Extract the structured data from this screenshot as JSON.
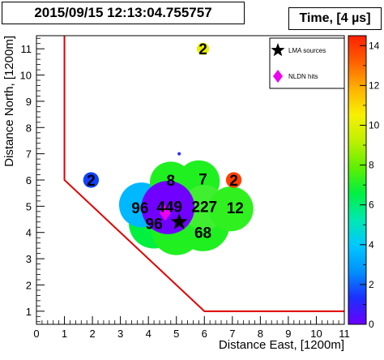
{
  "title": "2015/09/15 12:13:04.755757",
  "chart_data": {
    "type": "scatter",
    "xlabel": "Distance East,  [1200m]",
    "ylabel": "Distance North,  [1200m]",
    "xlim": [
      0,
      11
    ],
    "ylim": [
      0.5,
      11.5
    ],
    "xticks": [
      0,
      1,
      2,
      3,
      4,
      5,
      6,
      7,
      8,
      9,
      10,
      11
    ],
    "yticks": [
      1,
      2,
      3,
      4,
      5,
      6,
      7,
      8,
      9,
      10,
      11
    ],
    "colorbar": {
      "title": "Time, [4  µs]",
      "range": [
        0,
        14.5
      ],
      "ticks": [
        0,
        2,
        4,
        6,
        8,
        10,
        12,
        14
      ],
      "stops": [
        "#6a00ff",
        "#1c2fff",
        "#0090ff",
        "#00c8ff",
        "#00e8b0",
        "#00f040",
        "#60f000",
        "#c0f000",
        "#f8f000",
        "#ffb000",
        "#ff6000",
        "#ff2000"
      ]
    },
    "legend": {
      "placement": "top-right",
      "entries": [
        {
          "label": "LMA sources",
          "symbol": "star",
          "color": "#000000"
        },
        {
          "label": "NLDN hits",
          "symbol": "diamond",
          "color": "#ee00ee"
        }
      ]
    },
    "boundary": {
      "color": "#e00000",
      "points": [
        [
          1,
          11.5
        ],
        [
          1,
          6
        ],
        [
          6,
          1
        ],
        [
          11,
          1
        ]
      ]
    },
    "sources": [
      {
        "x": 4.2,
        "y": 4.35,
        "r": 0.9,
        "color": "#00f040",
        "label": "96"
      },
      {
        "x": 5.0,
        "y": 4.1,
        "r": 0.9,
        "color": "#20f020",
        "label": ""
      },
      {
        "x": 5.95,
        "y": 4.3,
        "r": 0.95,
        "color": "#20f020",
        "label": ""
      },
      {
        "x": 3.75,
        "y": 5.05,
        "r": 0.8,
        "color": "#00b8ff",
        "label": ""
      },
      {
        "x": 4.8,
        "y": 5.9,
        "r": 0.75,
        "color": "#20f020",
        "label": ""
      },
      {
        "x": 5.8,
        "y": 5.95,
        "r": 0.75,
        "color": "#20f020",
        "label": ""
      },
      {
        "x": 6.0,
        "y": 4.95,
        "r": 0.8,
        "color": "#40f030",
        "label": ""
      },
      {
        "x": 6.95,
        "y": 4.9,
        "r": 0.8,
        "color": "#30f020",
        "label": ""
      },
      {
        "x": 4.7,
        "y": 4.95,
        "r": 0.95,
        "color": "#7000ff",
        "label": ""
      },
      {
        "x": 5.95,
        "y": 4.0,
        "r": 0.03,
        "color": "#20f020",
        "label": "68"
      },
      {
        "x": 4.8,
        "y": 6.0,
        "r": 0.03,
        "color": "#20f020",
        "label": "8"
      },
      {
        "x": 5.95,
        "y": 6.05,
        "r": 0.03,
        "color": "#20f020",
        "label": "7"
      },
      {
        "x": 6.0,
        "y": 5.0,
        "r": 0.03,
        "color": "#20f020",
        "label": "227"
      },
      {
        "x": 7.1,
        "y": 4.95,
        "r": 0.03,
        "color": "#20f020",
        "label": "12"
      },
      {
        "x": 3.7,
        "y": 4.95,
        "r": 0.03,
        "color": "#00b8ff",
        "label": "96"
      },
      {
        "x": 4.75,
        "y": 5.0,
        "r": 0.03,
        "color": "#7000ff",
        "label": "449"
      },
      {
        "x": 7.05,
        "y": 6.0,
        "r": 0.28,
        "color": "#ff4000",
        "label": "2"
      },
      {
        "x": 1.95,
        "y": 6.0,
        "r": 0.28,
        "color": "#1040ff",
        "label": "2"
      },
      {
        "x": 5.95,
        "y": 11.0,
        "r": 0.22,
        "color": "#e8f000",
        "label": "2"
      },
      {
        "x": 5.1,
        "y": 7.0,
        "r": 0.06,
        "color": "#3030ff",
        "label": ""
      }
    ],
    "nldn_hits": [
      {
        "x": 4.6,
        "y": 4.75
      }
    ],
    "lma_stars": [
      {
        "x": 5.1,
        "y": 4.4
      }
    ]
  }
}
